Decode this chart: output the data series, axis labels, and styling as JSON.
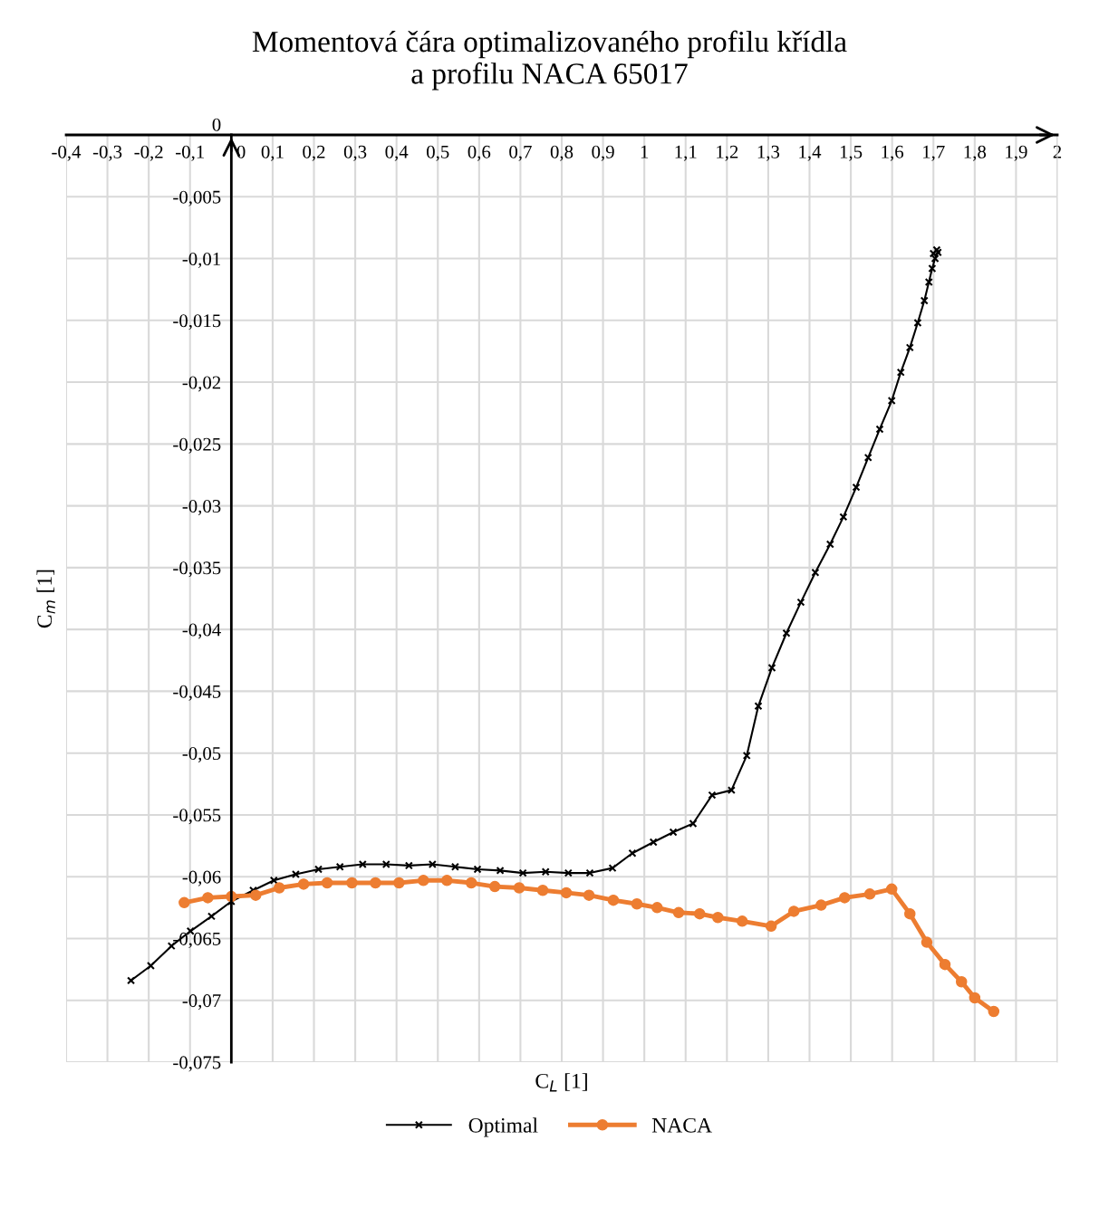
{
  "chart_data": {
    "type": "line",
    "title": "Momentová čára optimalizovaného profilu křídla\na profilu NACA 65017",
    "xlabel": "C$_{L}$ [1]",
    "ylabel": "C$_{m}$ [1]",
    "series": [
      {
        "name": "Optimal",
        "color": "#000000",
        "marker": "cross",
        "x": [
          -0.243,
          -0.195,
          -0.145,
          -0.099,
          -0.048,
          0.0,
          0.053,
          0.103,
          0.156,
          0.211,
          0.263,
          0.318,
          0.375,
          0.43,
          0.487,
          0.542,
          0.596,
          0.651,
          0.706,
          0.761,
          0.816,
          0.868,
          0.923,
          0.971,
          1.022,
          1.07,
          1.118,
          1.164,
          1.211,
          1.248,
          1.276,
          1.309,
          1.344,
          1.379,
          1.414,
          1.45,
          1.482,
          1.513,
          1.542,
          1.57,
          1.599,
          1.621,
          1.643,
          1.662,
          1.678,
          1.689,
          1.697,
          1.704,
          1.711,
          1.708,
          1.7
        ],
        "values": [
          -0.0684,
          -0.0672,
          -0.0656,
          -0.0644,
          -0.0632,
          -0.062,
          -0.0611,
          -0.0603,
          -0.0598,
          -0.0594,
          -0.0592,
          -0.059,
          -0.059,
          -0.0591,
          -0.059,
          -0.0592,
          -0.0594,
          -0.0595,
          -0.0597,
          -0.0596,
          -0.0597,
          -0.0597,
          -0.0593,
          -0.0581,
          -0.0572,
          -0.0564,
          -0.0557,
          -0.0534,
          -0.053,
          -0.0502,
          -0.0462,
          -0.0431,
          -0.0403,
          -0.0378,
          -0.0354,
          -0.0331,
          -0.0309,
          -0.0285,
          -0.0261,
          -0.0238,
          -0.0215,
          -0.0192,
          -0.0172,
          -0.0152,
          -0.0134,
          -0.0119,
          -0.0108,
          -0.01,
          -0.0095,
          -0.0093,
          -0.0096
        ]
      },
      {
        "name": "NACA",
        "color": "#ed7d31",
        "marker": "circle",
        "x": [
          -0.114,
          -0.057,
          0.0,
          0.059,
          0.116,
          0.175,
          0.232,
          0.292,
          0.349,
          0.406,
          0.465,
          0.522,
          0.581,
          0.638,
          0.697,
          0.754,
          0.811,
          0.866,
          0.925,
          0.982,
          1.031,
          1.083,
          1.134,
          1.178,
          1.237,
          1.307,
          1.362,
          1.428,
          1.485,
          1.546,
          1.599,
          1.643,
          1.684,
          1.728,
          1.768,
          1.8,
          1.846
        ],
        "values": [
          -0.0621,
          -0.0617,
          -0.0616,
          -0.0615,
          -0.0609,
          -0.0606,
          -0.0605,
          -0.0605,
          -0.0605,
          -0.0605,
          -0.0603,
          -0.0603,
          -0.0605,
          -0.0608,
          -0.0609,
          -0.0611,
          -0.0613,
          -0.0615,
          -0.0619,
          -0.0622,
          -0.0625,
          -0.0629,
          -0.063,
          -0.0633,
          -0.0636,
          -0.064,
          -0.0628,
          -0.0623,
          -0.0617,
          -0.0614,
          -0.061,
          -0.063,
          -0.0653,
          -0.0671,
          -0.0685,
          -0.0698,
          -0.0709
        ]
      }
    ],
    "xlim": [
      -0.4,
      2
    ],
    "ylim": [
      -0.075,
      0
    ],
    "xticks": [
      {
        "value": -0.4,
        "label": "-0,4"
      },
      {
        "value": -0.3,
        "label": "-0,3"
      },
      {
        "value": -0.2,
        "label": "-0,2"
      },
      {
        "value": -0.1,
        "label": "-0,1"
      },
      0,
      {
        "value": 0.1,
        "label": "0,1"
      },
      {
        "value": 0.2,
        "label": "0,2"
      },
      {
        "value": 0.3,
        "label": "0,3"
      },
      {
        "value": 0.4,
        "label": "0,4"
      },
      {
        "value": 0.5,
        "label": "0,5"
      },
      {
        "value": 0.6,
        "label": "0,6"
      },
      {
        "value": 0.7,
        "label": "0,7"
      },
      {
        "value": 0.8,
        "label": "0,8"
      },
      {
        "value": 0.9,
        "label": "0,9"
      },
      1,
      {
        "value": 1.1,
        "label": "1,1"
      },
      {
        "value": 1.2,
        "label": "1,2"
      },
      {
        "value": 1.3,
        "label": "1,3"
      },
      {
        "value": 1.4,
        "label": "1,4"
      },
      {
        "value": 1.5,
        "label": "1,5"
      },
      {
        "value": 1.6,
        "label": "1,6"
      },
      {
        "value": 1.7,
        "label": "1,7"
      },
      {
        "value": 1.8,
        "label": "1,8"
      },
      {
        "value": 1.9,
        "label": "1,9"
      },
      2
    ],
    "yticks": [
      0,
      {
        "value": -0.005,
        "label": "-0,005"
      },
      {
        "value": -0.01,
        "label": "-0,01"
      },
      {
        "value": -0.015,
        "label": "-0,015"
      },
      {
        "value": -0.02,
        "label": "-0,02"
      },
      {
        "value": -0.025,
        "label": "-0,025"
      },
      {
        "value": -0.03,
        "label": "-0,03"
      },
      {
        "value": -0.035,
        "label": "-0,035"
      },
      {
        "value": -0.04,
        "label": "-0,04"
      },
      {
        "value": -0.045,
        "label": "-0,045"
      },
      {
        "value": -0.05,
        "label": "-0,05"
      },
      {
        "value": -0.055,
        "label": "-0,055"
      },
      {
        "value": -0.06,
        "label": "-0,06"
      },
      {
        "value": -0.065,
        "label": "-0,065"
      },
      {
        "value": -0.07,
        "label": "-0,07"
      },
      {
        "value": -0.075,
        "label": "-0,075"
      }
    ],
    "grid": true,
    "legend": "bottom",
    "line_style": "solid"
  }
}
